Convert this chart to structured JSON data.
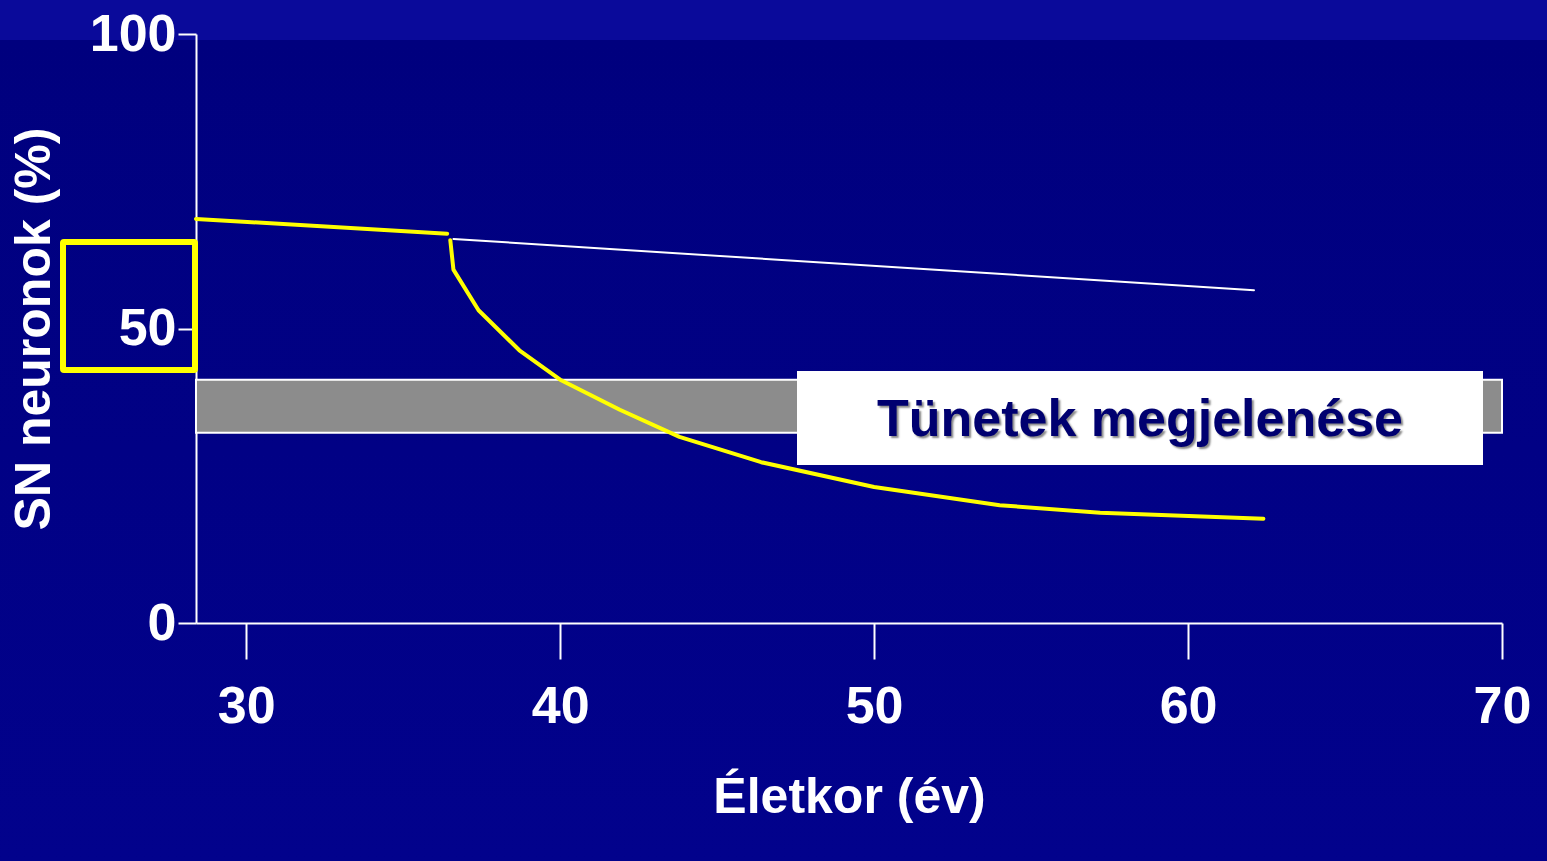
{
  "chart_data": {
    "type": "line",
    "xlabel": "Életkor (év)",
    "ylabel": "SN neuronok (%)",
    "xlim": [
      28.4,
      70
    ],
    "ylim": [
      0,
      100
    ],
    "xticks": [
      30,
      40,
      50,
      60,
      70
    ],
    "yticks": [
      0,
      50,
      100
    ],
    "grid": false,
    "series": [
      {
        "color": "#ffff00",
        "x": [
          28.4,
          36.4
        ],
        "values": [
          68.6,
          66.1
        ]
      },
      {
        "color": "#ffffff",
        "x": [
          36.6,
          62.1
        ],
        "values": [
          65.2,
          56.5
        ]
      },
      {
        "color": "#ffff00",
        "x": [
          36.5,
          36.6,
          37.4,
          38.7,
          40,
          41.9,
          43.8,
          46.4,
          50,
          54,
          57.2,
          62.4
        ],
        "values": [
          65,
          60,
          53.1,
          46.3,
          41.3,
          36.2,
          31.6,
          27.3,
          23.1,
          20,
          18.7,
          17.7
        ]
      }
    ],
    "bands": [
      {
        "axis": "y",
        "from": 32.3,
        "to": 41.3,
        "label": "Tünetek megjelenése",
        "color": "#8c8c8c"
      }
    ]
  }
}
